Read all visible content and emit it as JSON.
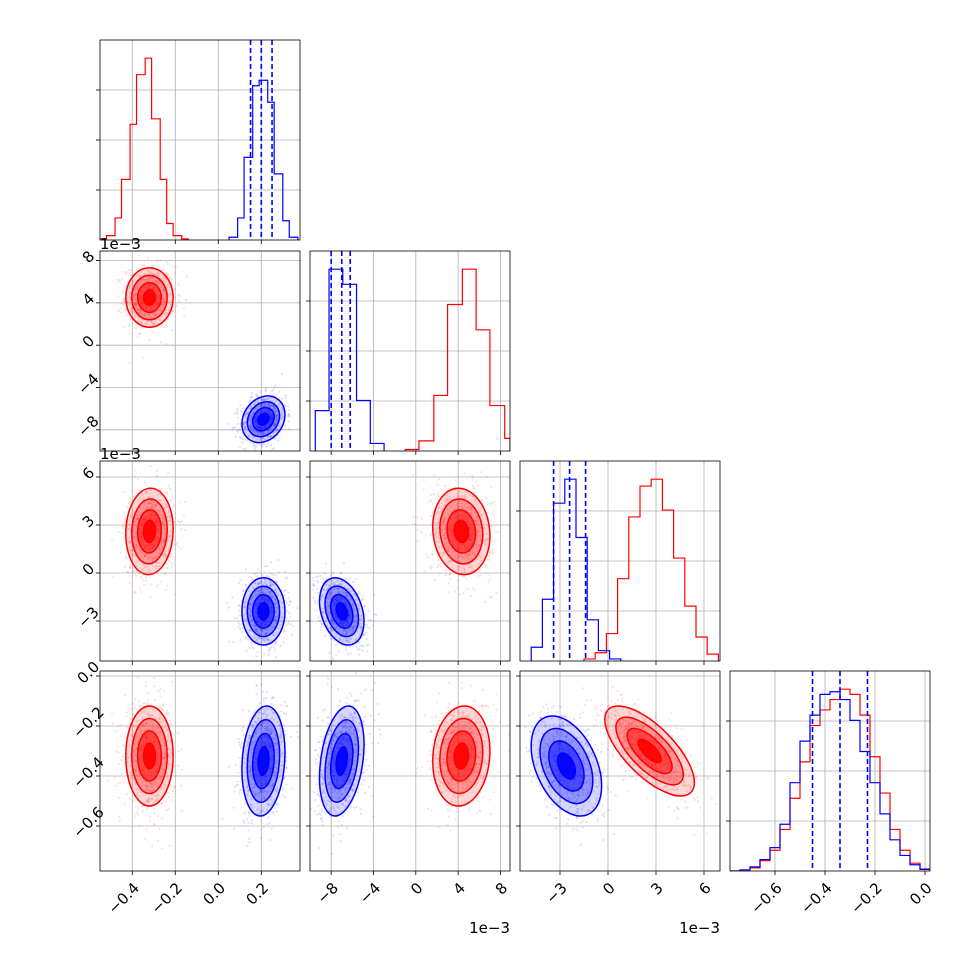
{
  "chart_data": {
    "type": "corner",
    "grid": true,
    "series": [
      {
        "color": "#ff0000"
      },
      {
        "color": "#0000ff"
      }
    ],
    "parameters": [
      {
        "range": [
          -0.55,
          0.38
        ],
        "ticks": [
          -0.4,
          -0.2,
          0.0,
          0.2
        ],
        "tick_labels": [
          "−0.4",
          "−0.2",
          "0.0",
          "0.2"
        ],
        "offset_label": ""
      },
      {
        "range": [
          -10.0,
          8.9
        ],
        "ticks": [
          -8,
          -4,
          0,
          4,
          8
        ],
        "tick_labels": [
          "−8",
          "−4",
          "0",
          "4",
          "8"
        ],
        "offset_label": "1e−3"
      },
      {
        "range": [
          -5.5,
          7.0
        ],
        "ticks": [
          -3,
          0,
          3,
          6
        ],
        "tick_labels": [
          "−3",
          "0",
          "3",
          "6"
        ],
        "offset_label": "1e−3"
      },
      {
        "range": [
          -0.78,
          0.02
        ],
        "ticks": [
          -0.6,
          -0.4,
          -0.2,
          0.0
        ],
        "tick_labels": [
          "−0.6",
          "−0.4",
          "−0.2",
          "0.0"
        ],
        "offset_label": ""
      }
    ],
    "marginals": [
      {
        "param": 0,
        "quantile_series": 1,
        "quantiles": [
          0.15,
          0.2,
          0.25
        ],
        "series": [
          {
            "edges": [
              -0.55,
              -0.52,
              -0.48,
              -0.45,
              -0.41,
              -0.38,
              -0.34,
              -0.31,
              -0.27,
              -0.24,
              -0.21,
              -0.17,
              -0.14
            ],
            "counts": [
              2,
              8,
              40,
              110,
              210,
              300,
              330,
              220,
              110,
              30,
              8,
              2
            ]
          },
          {
            "edges": [
              0.05,
              0.09,
              0.12,
              0.16,
              0.19,
              0.23,
              0.26,
              0.3,
              0.33,
              0.37
            ],
            "counts": [
              5,
              40,
              150,
              280,
              290,
              250,
              120,
              35,
              5
            ]
          }
        ]
      },
      {
        "param": 1,
        "quantile_series": 1,
        "quantiles": [
          -8.0,
          -7.0,
          -6.2
        ],
        "series": [
          {
            "edges": [
              -1.0,
              0.3,
              1.7,
              3.0,
              4.4,
              5.7,
              7.0,
              8.4,
              8.9
            ],
            "counts": [
              3,
              20,
              110,
              290,
              360,
              240,
              90,
              25
            ]
          },
          {
            "edges": [
              -9.5,
              -8.2,
              -6.9,
              -5.6,
              -4.3,
              -3.0
            ],
            "counts": [
              80,
              360,
              330,
              100,
              15
            ]
          }
        ]
      },
      {
        "param": 2,
        "quantile_series": 1,
        "quantiles": [
          -3.4,
          -2.4,
          -1.4
        ],
        "series": [
          {
            "edges": [
              -1.5,
              -0.8,
              -0.1,
              0.6,
              1.3,
              2.0,
              2.7,
              3.4,
              4.1,
              4.8,
              5.5,
              6.2,
              6.9
            ],
            "counts": [
              3,
              12,
              40,
              120,
              210,
              255,
              265,
              220,
              150,
              80,
              35,
              10
            ]
          },
          {
            "edges": [
              -4.8,
              -4.1,
              -3.4,
              -2.7,
              -2.0,
              -1.3,
              -0.6,
              0.1,
              0.8
            ],
            "counts": [
              20,
              90,
              230,
              265,
              180,
              60,
              15,
              3
            ]
          }
        ]
      },
      {
        "param": 3,
        "quantile_series": 1,
        "quantiles": [
          -0.45,
          -0.34,
          -0.23
        ],
        "series": [
          {
            "edges": [
              -0.78,
              -0.74,
              -0.7,
              -0.66,
              -0.62,
              -0.58,
              -0.54,
              -0.5,
              -0.46,
              -0.42,
              -0.38,
              -0.34,
              -0.3,
              -0.26,
              -0.22,
              -0.18,
              -0.14,
              -0.1,
              -0.06,
              -0.02,
              0.02
            ],
            "counts": [
              0,
              2,
              6,
              20,
              40,
              80,
              140,
              210,
              280,
              310,
              330,
              350,
              340,
              300,
              220,
              150,
              80,
              40,
              15,
              4
            ]
          },
          {
            "edges": [
              -0.78,
              -0.74,
              -0.7,
              -0.66,
              -0.62,
              -0.58,
              -0.54,
              -0.5,
              -0.46,
              -0.42,
              -0.38,
              -0.34,
              -0.3,
              -0.26,
              -0.22,
              -0.18,
              -0.14,
              -0.1,
              -0.06,
              -0.02,
              0.02
            ],
            "counts": [
              0,
              2,
              8,
              22,
              45,
              90,
              170,
              250,
              300,
              340,
              345,
              330,
              290,
              230,
              170,
              110,
              60,
              30,
              12,
              3
            ]
          }
        ]
      }
    ],
    "pairs": [
      {
        "x": 0,
        "y": 1,
        "blobs": [
          {
            "series": 0,
            "mean": [
              -0.32,
              4.5
            ],
            "sd": [
              0.055,
              1.4
            ],
            "rho": 0.0
          },
          {
            "series": 1,
            "mean": [
              0.21,
              -7.0
            ],
            "sd": [
              0.05,
              1.1
            ],
            "rho": 0.2
          }
        ]
      },
      {
        "x": 0,
        "y": 2,
        "blobs": [
          {
            "series": 0,
            "mean": [
              -0.32,
              2.6
            ],
            "sd": [
              0.055,
              1.35
            ],
            "rho": 0.05
          },
          {
            "series": 1,
            "mean": [
              0.21,
              -2.4
            ],
            "sd": [
              0.05,
              1.05
            ],
            "rho": 0.0
          }
        ]
      },
      {
        "x": 0,
        "y": 3,
        "blobs": [
          {
            "series": 0,
            "mean": [
              -0.32,
              -0.32
            ],
            "sd": [
              0.055,
              0.1
            ],
            "rho": 0.0
          },
          {
            "series": 1,
            "mean": [
              0.21,
              -0.34
            ],
            "sd": [
              0.05,
              0.11
            ],
            "rho": 0.15
          }
        ]
      },
      {
        "x": 1,
        "y": 2,
        "blobs": [
          {
            "series": 0,
            "mean": [
              4.3,
              2.6
            ],
            "sd": [
              1.35,
              1.35
            ],
            "rho": -0.1
          },
          {
            "series": 1,
            "mean": [
              -7.0,
              -2.4
            ],
            "sd": [
              1.05,
              1.05
            ],
            "rho": -0.3
          }
        ]
      },
      {
        "x": 1,
        "y": 3,
        "blobs": [
          {
            "series": 0,
            "mean": [
              4.3,
              -0.32
            ],
            "sd": [
              1.35,
              0.1
            ],
            "rho": 0.1
          },
          {
            "series": 1,
            "mean": [
              -7.0,
              -0.34
            ],
            "sd": [
              1.05,
              0.11
            ],
            "rho": 0.3
          }
        ]
      },
      {
        "x": 2,
        "y": 3,
        "blobs": [
          {
            "series": 0,
            "mean": [
              2.6,
              -0.3
            ],
            "sd": [
              1.4,
              0.09
            ],
            "rho": -0.7
          },
          {
            "series": 1,
            "mean": [
              -2.6,
              -0.36
            ],
            "sd": [
              1.1,
              0.1
            ],
            "rho": -0.4
          }
        ]
      }
    ]
  }
}
